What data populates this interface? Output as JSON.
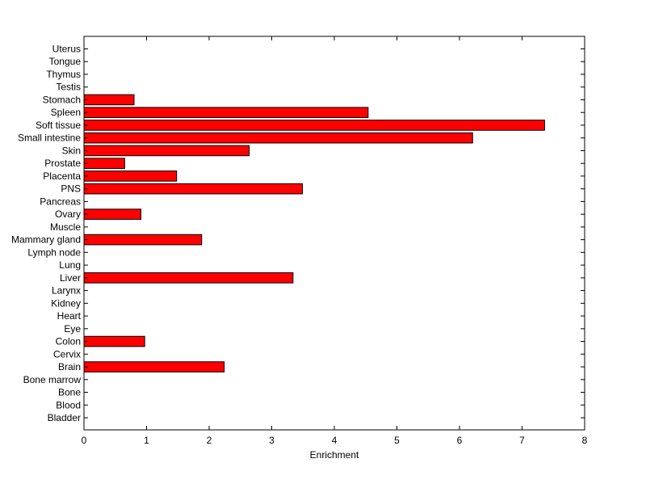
{
  "chart_data": {
    "type": "bar",
    "orientation": "horizontal",
    "xlabel": "Enrichment",
    "ylabel": "",
    "title": "",
    "xlim": [
      0,
      8
    ],
    "xticks": [
      "0",
      "1",
      "2",
      "3",
      "4",
      "5",
      "6",
      "7",
      "8"
    ],
    "grid": false,
    "bar_color": "#ff0000",
    "bar_edge_color": "#000000",
    "categories": [
      "Uterus",
      "Tongue",
      "Thymus",
      "Testis",
      "Stomach",
      "Spleen",
      "Soft tissue",
      "Small intestine",
      "Skin",
      "Prostate",
      "Placenta",
      "PNS",
      "Pancreas",
      "Ovary",
      "Muscle",
      "Mammary gland",
      "Lymph node",
      "Lung",
      "Liver",
      "Larynx",
      "Kidney",
      "Heart",
      "Eye",
      "Colon",
      "Cervix",
      "Brain",
      "Bone marrow",
      "Bone",
      "Blood",
      "Bladder"
    ],
    "values": [
      0,
      0,
      0,
      0,
      0.8,
      4.54,
      7.36,
      6.21,
      2.64,
      0.65,
      1.48,
      3.49,
      0,
      0.91,
      0,
      1.88,
      0,
      0,
      3.34,
      0,
      0,
      0,
      0,
      0.97,
      0,
      2.24,
      0,
      0,
      0,
      0
    ]
  }
}
